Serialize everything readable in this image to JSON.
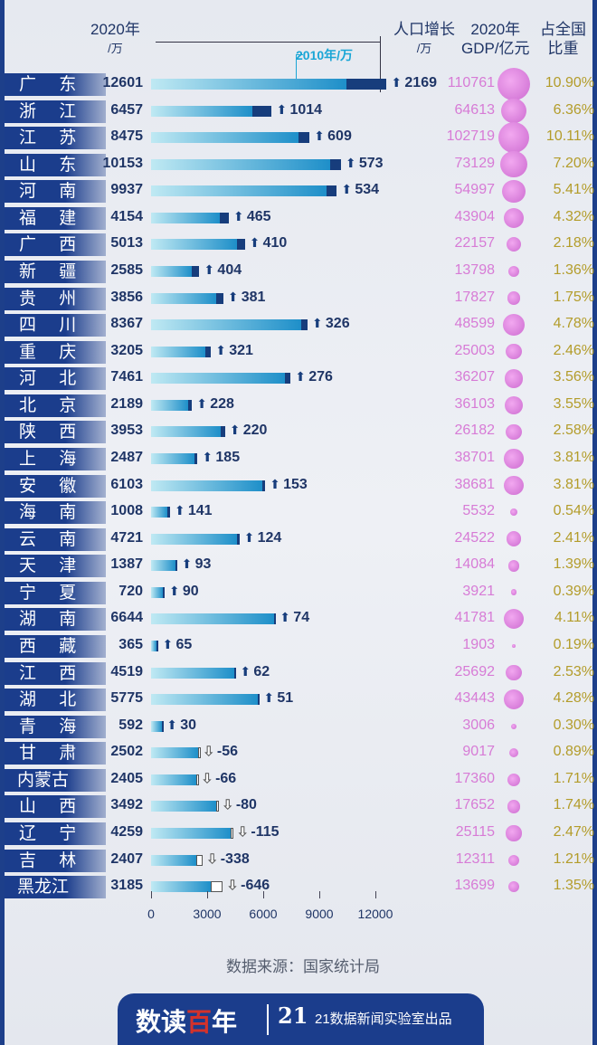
{
  "header": {
    "pop2020": "2020年",
    "pop2020_unit": "/万",
    "legend_2010": "2010年/万",
    "growth": "人口增长",
    "growth_unit": "/万",
    "gdp": "2020年",
    "gdp_unit": "GDP/亿元",
    "share": "占全国",
    "share2": "比重"
  },
  "colors": {
    "bar_light": "#bfe9f3",
    "bar_mid": "#1e8fc9",
    "growth": "#173d7c",
    "gdp": "#d77bd6",
    "share": "#b39c2a",
    "label_bg": "#1b3d8c"
  },
  "chart_data": {
    "type": "bar",
    "orientation": "horizontal",
    "xlim": [
      0,
      12000
    ],
    "xticks": [
      "0",
      "3000",
      "6000",
      "9000",
      "12000"
    ],
    "columns": [
      "province",
      "pop2020",
      "growth",
      "gdp2020",
      "share"
    ],
    "rows": [
      [
        "广 东",
        12601,
        2169,
        110761,
        "10.90%"
      ],
      [
        "浙 江",
        6457,
        1014,
        64613,
        "6.36%"
      ],
      [
        "江 苏",
        8475,
        609,
        102719,
        "10.11%"
      ],
      [
        "山 东",
        10153,
        573,
        73129,
        "7.20%"
      ],
      [
        "河 南",
        9937,
        534,
        54997,
        "5.41%"
      ],
      [
        "福 建",
        4154,
        465,
        43904,
        "4.32%"
      ],
      [
        "广 西",
        5013,
        410,
        22157,
        "2.18%"
      ],
      [
        "新 疆",
        2585,
        404,
        13798,
        "1.36%"
      ],
      [
        "贵 州",
        3856,
        381,
        17827,
        "1.75%"
      ],
      [
        "四 川",
        8367,
        326,
        48599,
        "4.78%"
      ],
      [
        "重 庆",
        3205,
        321,
        25003,
        "2.46%"
      ],
      [
        "河 北",
        7461,
        276,
        36207,
        "3.56%"
      ],
      [
        "北 京",
        2189,
        228,
        36103,
        "3.55%"
      ],
      [
        "陕 西",
        3953,
        220,
        26182,
        "2.58%"
      ],
      [
        "上 海",
        2487,
        185,
        38701,
        "3.81%"
      ],
      [
        "安 徽",
        6103,
        153,
        38681,
        "3.81%"
      ],
      [
        "海 南",
        1008,
        141,
        5532,
        "0.54%"
      ],
      [
        "云 南",
        4721,
        124,
        24522,
        "2.41%"
      ],
      [
        "天 津",
        1387,
        93,
        14084,
        "1.39%"
      ],
      [
        "宁 夏",
        720,
        90,
        3921,
        "0.39%"
      ],
      [
        "湖 南",
        6644,
        74,
        41781,
        "4.11%"
      ],
      [
        "西 藏",
        365,
        65,
        1903,
        "0.19%"
      ],
      [
        "江 西",
        4519,
        62,
        25692,
        "2.53%"
      ],
      [
        "湖 北",
        5775,
        51,
        43443,
        "4.28%"
      ],
      [
        "青 海",
        592,
        30,
        3006,
        "0.30%"
      ],
      [
        "甘 肃",
        2502,
        -56,
        9017,
        "0.89%"
      ],
      [
        "内蒙古",
        2405,
        -66,
        17360,
        "1.71%"
      ],
      [
        "山 西",
        3492,
        -80,
        17652,
        "1.74%"
      ],
      [
        "辽 宁",
        4259,
        -115,
        25115,
        "2.47%"
      ],
      [
        "吉 林",
        2407,
        -338,
        12311,
        "1.21%"
      ],
      [
        "黑龙江",
        3185,
        -646,
        13699,
        "1.35%"
      ]
    ]
  },
  "source": "数据来源：国家统计局",
  "footer": {
    "logo": "数读百年",
    "brand": "21",
    "credit": "21数据新闻实验室出品"
  }
}
